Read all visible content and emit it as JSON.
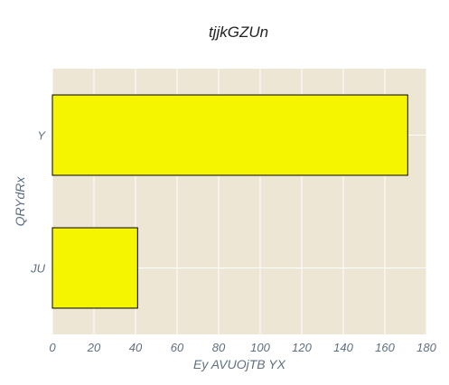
{
  "chart_data": {
    "type": "bar",
    "orientation": "horizontal",
    "title": "tjjkGZUn",
    "xlabel": "Ey AVUOjTB YX",
    "ylabel": "QRYdRx",
    "categories": [
      "JU",
      "Y"
    ],
    "values": [
      41,
      171
    ],
    "xlim": [
      0,
      180
    ],
    "xticks": [
      0,
      20,
      40,
      60,
      80,
      100,
      120,
      140,
      160,
      180
    ],
    "grid": true,
    "legend": "none",
    "colors": {
      "bar_fill": "#f5f500",
      "bar_stroke": "#000000",
      "plot_background": "#ede6d4",
      "grid": "#ffffff"
    }
  }
}
